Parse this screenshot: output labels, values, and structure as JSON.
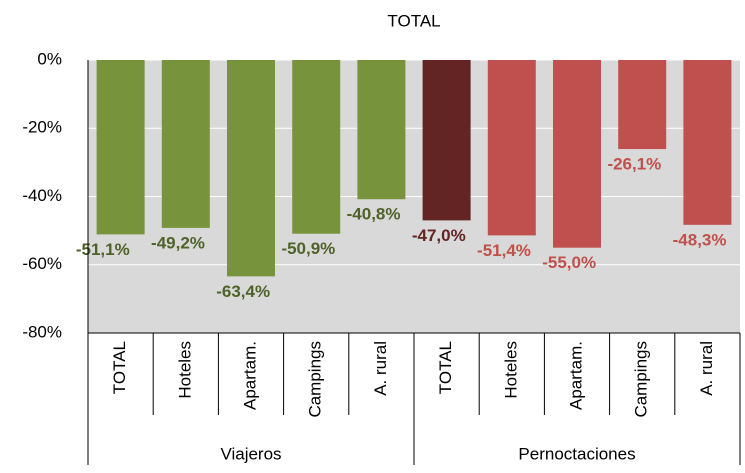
{
  "chart_data": {
    "type": "bar",
    "title": "TOTAL",
    "title_color": "#77933c",
    "ylim": [
      -80,
      0
    ],
    "yticks": [
      {
        "value": 0,
        "label": "0%"
      },
      {
        "value": -20,
        "label": "-20%"
      },
      {
        "value": -40,
        "label": "-40%"
      },
      {
        "value": -60,
        "label": "-60%"
      },
      {
        "value": -80,
        "label": "-80%"
      }
    ],
    "grid": true,
    "groups": [
      {
        "name": "Viajeros",
        "categories": [
          "TOTAL",
          "Hoteles",
          "Apartam.",
          "Campings",
          "A. rural"
        ],
        "values": [
          -51.1,
          -49.2,
          -63.4,
          -50.9,
          -40.8
        ],
        "value_labels": [
          "-51,1%",
          "-49,2%",
          "-63,4%",
          "-50,9%",
          "-40,8%"
        ],
        "colors": [
          "#77933c",
          "#77933c",
          "#77933c",
          "#77933c",
          "#77933c"
        ],
        "label_colors": [
          "#4f6228",
          "#4f6228",
          "#4f6228",
          "#4f6228",
          "#4f6228"
        ]
      },
      {
        "name": "Pernoctaciones",
        "categories": [
          "TOTAL",
          "Hoteles",
          "Apartam.",
          "Campings",
          "A. rural"
        ],
        "values": [
          -47.0,
          -51.4,
          -55.0,
          -26.1,
          -48.3
        ],
        "value_labels": [
          "-47,0%",
          "-51,4%",
          "-55,0%",
          "-26,1%",
          "-48,3%"
        ],
        "colors": [
          "#632523",
          "#c0504d",
          "#c0504d",
          "#c0504d",
          "#c0504d"
        ],
        "label_colors": [
          "#632523",
          "#c0504d",
          "#c0504d",
          "#c0504d",
          "#c0504d"
        ]
      }
    ]
  }
}
